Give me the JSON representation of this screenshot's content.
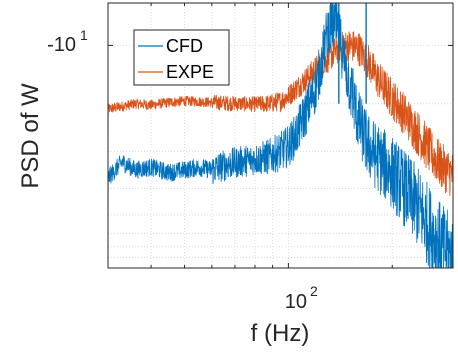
{
  "chart_data": {
    "type": "line",
    "xlabel": "f (Hz)",
    "ylabel": "PSD of W",
    "x_scale": "log",
    "y_scale": "log",
    "x_tick": {
      "value": 100,
      "base": "10",
      "exponent": "2"
    },
    "y_tick": {
      "prefix": "-",
      "base": "10",
      "exponent": "1"
    },
    "xlim": [
      30,
      300
    ],
    "grid": true,
    "legend_placement": "top-left",
    "series": [
      {
        "name": "CFD",
        "color": "#0072BD",
        "envelope": [
          [
            30,
            0.34
          ],
          [
            33,
            0.4
          ],
          [
            36,
            0.37
          ],
          [
            40,
            0.38
          ],
          [
            45,
            0.36
          ],
          [
            50,
            0.37
          ],
          [
            55,
            0.38
          ],
          [
            60,
            0.37
          ],
          [
            66,
            0.39
          ],
          [
            72,
            0.4
          ],
          [
            80,
            0.41
          ],
          [
            88,
            0.42
          ],
          [
            95,
            0.44
          ],
          [
            100,
            0.46
          ],
          [
            105,
            0.5
          ],
          [
            110,
            0.56
          ],
          [
            115,
            0.62
          ],
          [
            120,
            0.68
          ],
          [
            125,
            0.78
          ],
          [
            130,
            0.9
          ],
          [
            136,
            0.93
          ],
          [
            142,
            0.84
          ],
          [
            150,
            0.7
          ],
          [
            160,
            0.55
          ],
          [
            170,
            0.46
          ],
          [
            180,
            0.42
          ],
          [
            200,
            0.36
          ],
          [
            220,
            0.29
          ],
          [
            240,
            0.22
          ],
          [
            260,
            0.14
          ],
          [
            280,
            0.08
          ],
          [
            300,
            0.04
          ]
        ]
      },
      {
        "name": "EXPE",
        "color": "#D95319",
        "envelope": [
          [
            30,
            0.6
          ],
          [
            33,
            0.61
          ],
          [
            36,
            0.62
          ],
          [
            40,
            0.615
          ],
          [
            45,
            0.625
          ],
          [
            50,
            0.63
          ],
          [
            55,
            0.628
          ],
          [
            60,
            0.625
          ],
          [
            66,
            0.622
          ],
          [
            72,
            0.62
          ],
          [
            80,
            0.618
          ],
          [
            88,
            0.62
          ],
          [
            95,
            0.63
          ],
          [
            100,
            0.65
          ],
          [
            110,
            0.7
          ],
          [
            120,
            0.75
          ],
          [
            130,
            0.79
          ],
          [
            140,
            0.83
          ],
          [
            150,
            0.84
          ],
          [
            160,
            0.83
          ],
          [
            170,
            0.78
          ],
          [
            180,
            0.72
          ],
          [
            200,
            0.64
          ],
          [
            220,
            0.57
          ],
          [
            240,
            0.5
          ],
          [
            260,
            0.43
          ],
          [
            280,
            0.38
          ],
          [
            300,
            0.35
          ]
        ]
      }
    ]
  }
}
